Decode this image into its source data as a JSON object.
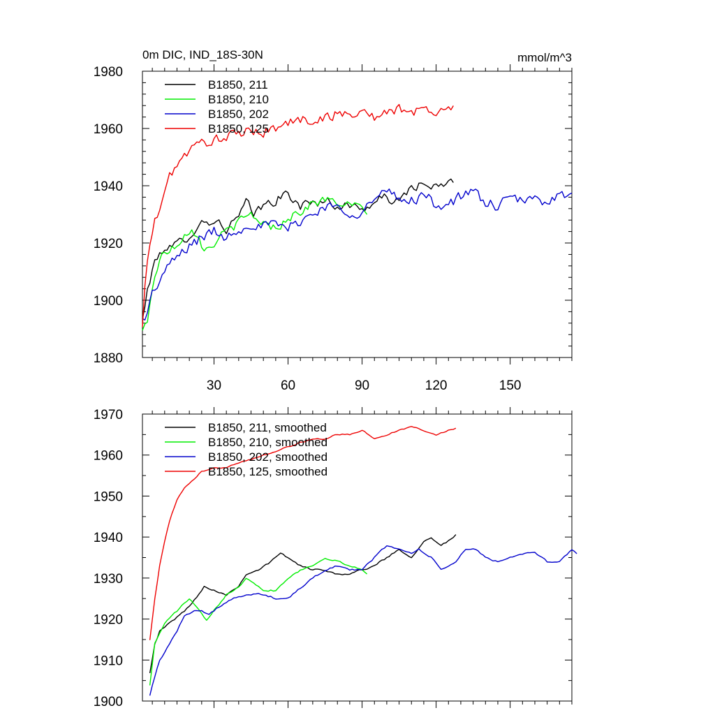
{
  "chart_data": [
    {
      "type": "line",
      "title": "0m DIC, IND_18S-30N",
      "units": "mmol/m^3",
      "xlabel": "",
      "ylabel": "",
      "xlim": [
        1,
        175
      ],
      "ylim": [
        1880,
        1980
      ],
      "xticks": [
        30,
        60,
        90,
        120,
        150
      ],
      "yticks": [
        1880,
        1900,
        1920,
        1940,
        1960,
        1980
      ],
      "legend_position": "top-left",
      "series": [
        {
          "name": "B1850, 211",
          "color": "#000000",
          "anchors": [
            [
              1,
              1893
            ],
            [
              3,
              1903
            ],
            [
              5,
              1911
            ],
            [
              8,
              1916
            ],
            [
              10,
              1919
            ],
            [
              13,
              1918
            ],
            [
              16,
              1920
            ],
            [
              20,
              1923
            ],
            [
              25,
              1927
            ],
            [
              30,
              1928
            ],
            [
              35,
              1925
            ],
            [
              40,
              1929
            ],
            [
              43,
              1934
            ],
            [
              46,
              1930
            ],
            [
              50,
              1933
            ],
            [
              55,
              1935
            ],
            [
              60,
              1937
            ],
            [
              65,
              1933
            ],
            [
              70,
              1934
            ],
            [
              75,
              1935
            ],
            [
              80,
              1933
            ],
            [
              85,
              1933
            ],
            [
              90,
              1932
            ],
            [
              95,
              1934
            ],
            [
              100,
              1936
            ],
            [
              105,
              1934
            ],
            [
              110,
              1940
            ],
            [
              115,
              1940
            ],
            [
              120,
              1939
            ],
            [
              125,
              1941
            ],
            [
              127,
              1941
            ]
          ],
          "noise": 1.6
        },
        {
          "name": "B1850, 210",
          "color": "#00ee00",
          "anchors": [
            [
              1,
              1889
            ],
            [
              3,
              1893
            ],
            [
              5,
              1905
            ],
            [
              8,
              1914
            ],
            [
              10,
              1917
            ],
            [
              14,
              1919
            ],
            [
              18,
              1923
            ],
            [
              20,
              1925
            ],
            [
              24,
              1923
            ],
            [
              26,
              1917
            ],
            [
              30,
              1920
            ],
            [
              35,
              1924
            ],
            [
              40,
              1927
            ],
            [
              45,
              1930
            ],
            [
              50,
              1927
            ],
            [
              55,
              1925
            ],
            [
              60,
              1929
            ],
            [
              65,
              1931
            ],
            [
              70,
              1934
            ],
            [
              75,
              1935
            ],
            [
              80,
              1934
            ],
            [
              85,
              1933
            ],
            [
              90,
              1932
            ],
            [
              92,
              1931
            ]
          ],
          "noise": 1.5
        },
        {
          "name": "B1850, 202",
          "color": "#0000cc",
          "anchors": [
            [
              1,
              1893
            ],
            [
              3,
              1896
            ],
            [
              5,
              1902
            ],
            [
              10,
              1910
            ],
            [
              15,
              1915
            ],
            [
              20,
              1919
            ],
            [
              25,
              1922
            ],
            [
              30,
              1924
            ],
            [
              35,
              1922
            ],
            [
              40,
              1925
            ],
            [
              45,
              1927
            ],
            [
              50,
              1926
            ],
            [
              55,
              1926
            ],
            [
              60,
              1925
            ],
            [
              65,
              1928
            ],
            [
              70,
              1930
            ],
            [
              75,
              1933
            ],
            [
              80,
              1932
            ],
            [
              85,
              1931
            ],
            [
              90,
              1931
            ],
            [
              95,
              1935
            ],
            [
              100,
              1938
            ],
            [
              105,
              1935
            ],
            [
              110,
              1935
            ],
            [
              115,
              1937
            ],
            [
              120,
              1933
            ],
            [
              125,
              1934
            ],
            [
              130,
              1936
            ],
            [
              135,
              1938
            ],
            [
              140,
              1934
            ],
            [
              145,
              1933
            ],
            [
              150,
              1935
            ],
            [
              155,
              1935
            ],
            [
              160,
              1935
            ],
            [
              165,
              1935
            ],
            [
              170,
              1937
            ],
            [
              175,
              1936
            ]
          ],
          "noise": 1.8
        },
        {
          "name": "B1850, 125",
          "color": "#ee0000",
          "anchors": [
            [
              1,
              1890
            ],
            [
              2,
              1905
            ],
            [
              4,
              1920
            ],
            [
              6,
              1927
            ],
            [
              8,
              1932
            ],
            [
              10,
              1938
            ],
            [
              12,
              1943
            ],
            [
              15,
              1948
            ],
            [
              20,
              1952
            ],
            [
              25,
              1955
            ],
            [
              30,
              1956
            ],
            [
              35,
              1957
            ],
            [
              40,
              1958
            ],
            [
              45,
              1959
            ],
            [
              50,
              1959
            ],
            [
              55,
              1960
            ],
            [
              60,
              1962
            ],
            [
              65,
              1963
            ],
            [
              70,
              1963
            ],
            [
              75,
              1964
            ],
            [
              80,
              1965
            ],
            [
              85,
              1965
            ],
            [
              90,
              1966
            ],
            [
              95,
              1964
            ],
            [
              100,
              1965
            ],
            [
              105,
              1967
            ],
            [
              110,
              1966
            ],
            [
              115,
              1966
            ],
            [
              120,
              1966
            ],
            [
              125,
              1967
            ],
            [
              127,
              1967
            ]
          ],
          "noise": 1.7
        }
      ]
    },
    {
      "type": "line",
      "title": "",
      "xlabel": "",
      "ylabel": "",
      "xlim": [
        1,
        175
      ],
      "ylim": [
        1900,
        1970
      ],
      "xticks": [
        30,
        60,
        90,
        120,
        150
      ],
      "show_xtick_labels": false,
      "yticks": [
        1900,
        1910,
        1920,
        1930,
        1940,
        1950,
        1960,
        1970
      ],
      "legend_position": "top-left",
      "series": [
        {
          "name": "B1850, 211, smoothed",
          "color": "#000000",
          "anchors": [
            [
              4,
              1907
            ],
            [
              6,
              1914
            ],
            [
              8,
              1917
            ],
            [
              12,
              1919
            ],
            [
              16,
              1921
            ],
            [
              20,
              1923
            ],
            [
              26,
              1928
            ],
            [
              30,
              1927
            ],
            [
              35,
              1926
            ],
            [
              40,
              1928
            ],
            [
              43,
              1931
            ],
            [
              48,
              1932
            ],
            [
              53,
              1934
            ],
            [
              57,
              1936
            ],
            [
              60,
              1935
            ],
            [
              65,
              1933
            ],
            [
              70,
              1932
            ],
            [
              75,
              1932
            ],
            [
              80,
              1931
            ],
            [
              85,
              1931
            ],
            [
              90,
              1932
            ],
            [
              95,
              1933
            ],
            [
              100,
              1935
            ],
            [
              105,
              1937
            ],
            [
              110,
              1935
            ],
            [
              115,
              1939
            ],
            [
              118,
              1940
            ],
            [
              122,
              1938
            ],
            [
              125,
              1939
            ],
            [
              128,
              1940.5
            ]
          ],
          "noise": 0.2
        },
        {
          "name": "B1850, 210, smoothed",
          "color": "#00ee00",
          "anchors": [
            [
              4,
              1904
            ],
            [
              6,
              1914
            ],
            [
              10,
              1919
            ],
            [
              15,
              1922
            ],
            [
              20,
              1925
            ],
            [
              24,
              1922
            ],
            [
              27,
              1919.5
            ],
            [
              30,
              1922
            ],
            [
              35,
              1926
            ],
            [
              40,
              1928
            ],
            [
              43,
              1930
            ],
            [
              46,
              1929
            ],
            [
              50,
              1927
            ],
            [
              55,
              1927
            ],
            [
              60,
              1930
            ],
            [
              65,
              1932
            ],
            [
              70,
              1933
            ],
            [
              75,
              1935
            ],
            [
              80,
              1934
            ],
            [
              85,
              1933
            ],
            [
              90,
              1932
            ],
            [
              92,
              1931
            ]
          ],
          "noise": 0.2
        },
        {
          "name": "B1850, 202, smoothed",
          "color": "#0000cc",
          "anchors": [
            [
              4,
              1901.5
            ],
            [
              6,
              1906
            ],
            [
              8,
              1910
            ],
            [
              12,
              1914
            ],
            [
              15,
              1917
            ],
            [
              18,
              1921
            ],
            [
              22,
              1922
            ],
            [
              25,
              1922
            ],
            [
              28,
              1921
            ],
            [
              32,
              1923
            ],
            [
              38,
              1925
            ],
            [
              45,
              1926
            ],
            [
              50,
              1926
            ],
            [
              55,
              1925
            ],
            [
              60,
              1925
            ],
            [
              64,
              1927
            ],
            [
              70,
              1930
            ],
            [
              75,
              1932
            ],
            [
              80,
              1933
            ],
            [
              85,
              1932
            ],
            [
              90,
              1932
            ],
            [
              95,
              1935
            ],
            [
              100,
              1938
            ],
            [
              105,
              1937
            ],
            [
              110,
              1936
            ],
            [
              113,
              1937
            ],
            [
              118,
              1935
            ],
            [
              122,
              1932
            ],
            [
              128,
              1934
            ],
            [
              132,
              1937
            ],
            [
              136,
              1937
            ],
            [
              140,
              1935
            ],
            [
              145,
              1934
            ],
            [
              150,
              1935
            ],
            [
              155,
              1936
            ],
            [
              160,
              1936
            ],
            [
              165,
              1934
            ],
            [
              170,
              1934
            ],
            [
              175,
              1937
            ],
            [
              177,
              1936
            ]
          ],
          "noise": 0.2
        },
        {
          "name": "B1850, 125, smoothed",
          "color": "#ee0000",
          "anchors": [
            [
              4,
              1915
            ],
            [
              6,
              1925
            ],
            [
              8,
              1933
            ],
            [
              10,
              1939
            ],
            [
              12,
              1944
            ],
            [
              15,
              1949
            ],
            [
              18,
              1952
            ],
            [
              22,
              1954
            ],
            [
              25,
              1956
            ],
            [
              30,
              1957
            ],
            [
              35,
              1957
            ],
            [
              40,
              1958
            ],
            [
              45,
              1959
            ],
            [
              50,
              1960
            ],
            [
              55,
              1961
            ],
            [
              60,
              1962
            ],
            [
              65,
              1963
            ],
            [
              70,
              1964
            ],
            [
              75,
              1964
            ],
            [
              80,
              1965
            ],
            [
              85,
              1965
            ],
            [
              90,
              1966
            ],
            [
              95,
              1964
            ],
            [
              100,
              1965
            ],
            [
              105,
              1966
            ],
            [
              110,
              1967
            ],
            [
              115,
              1966
            ],
            [
              120,
              1965
            ],
            [
              125,
              1966
            ],
            [
              128,
              1966.5
            ]
          ],
          "noise": 0.15
        }
      ]
    }
  ]
}
